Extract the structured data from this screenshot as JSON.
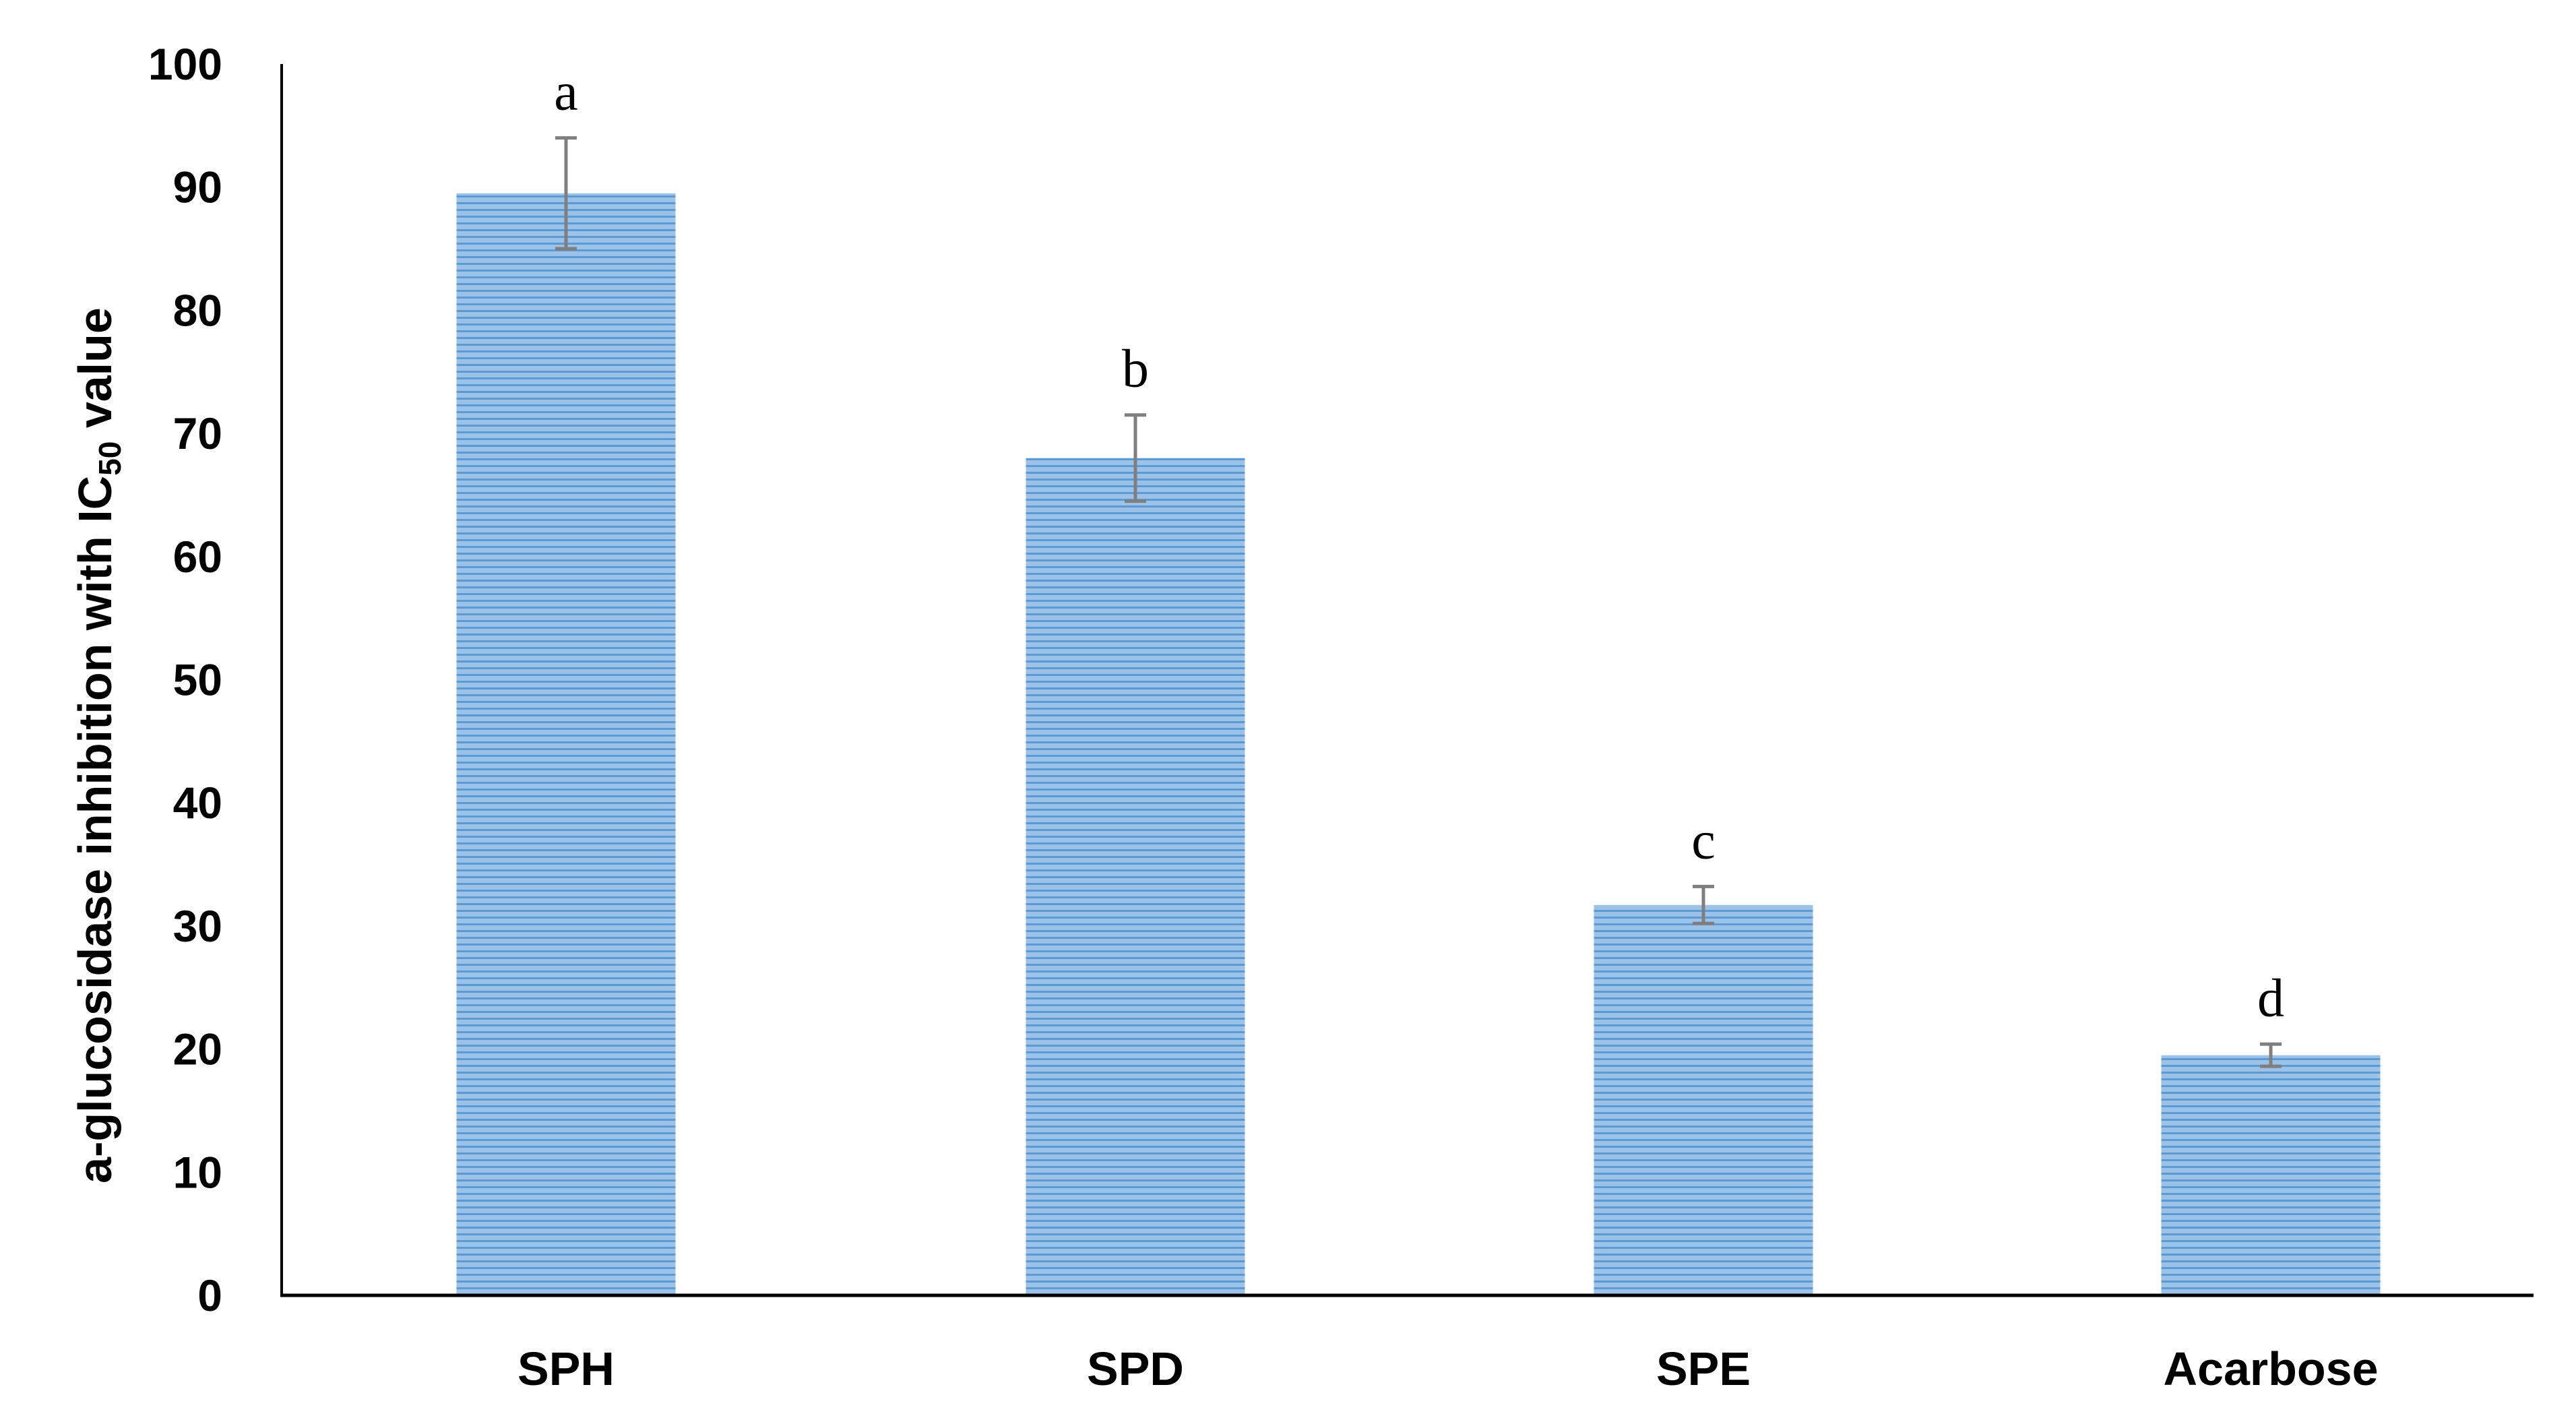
{
  "chart_data": {
    "type": "bar",
    "categories": [
      "SPH",
      "SPD",
      "SPE",
      "Acarbose"
    ],
    "values": [
      89.5,
      68.0,
      31.7,
      19.5
    ],
    "errors": [
      4.5,
      3.5,
      1.5,
      0.9
    ],
    "significance_labels": [
      "a",
      "b",
      "c",
      "d"
    ],
    "title": "",
    "xlabel": "",
    "ylabel": {
      "prefix": "a-glucosidase inhibition with IC",
      "subscript": "50",
      "suffix": " value"
    },
    "ylim": [
      0,
      100
    ],
    "yticks": [
      "0",
      "10",
      "20",
      "30",
      "40",
      "50",
      "60",
      "70",
      "80",
      "90",
      "100"
    ],
    "grid": false,
    "legend": "none",
    "colors": {
      "bar_fill": "#9cc2e8",
      "bar_stripe": "#5b9bd5",
      "error_bar": "#7f7f7f",
      "axis": "#000000"
    }
  }
}
